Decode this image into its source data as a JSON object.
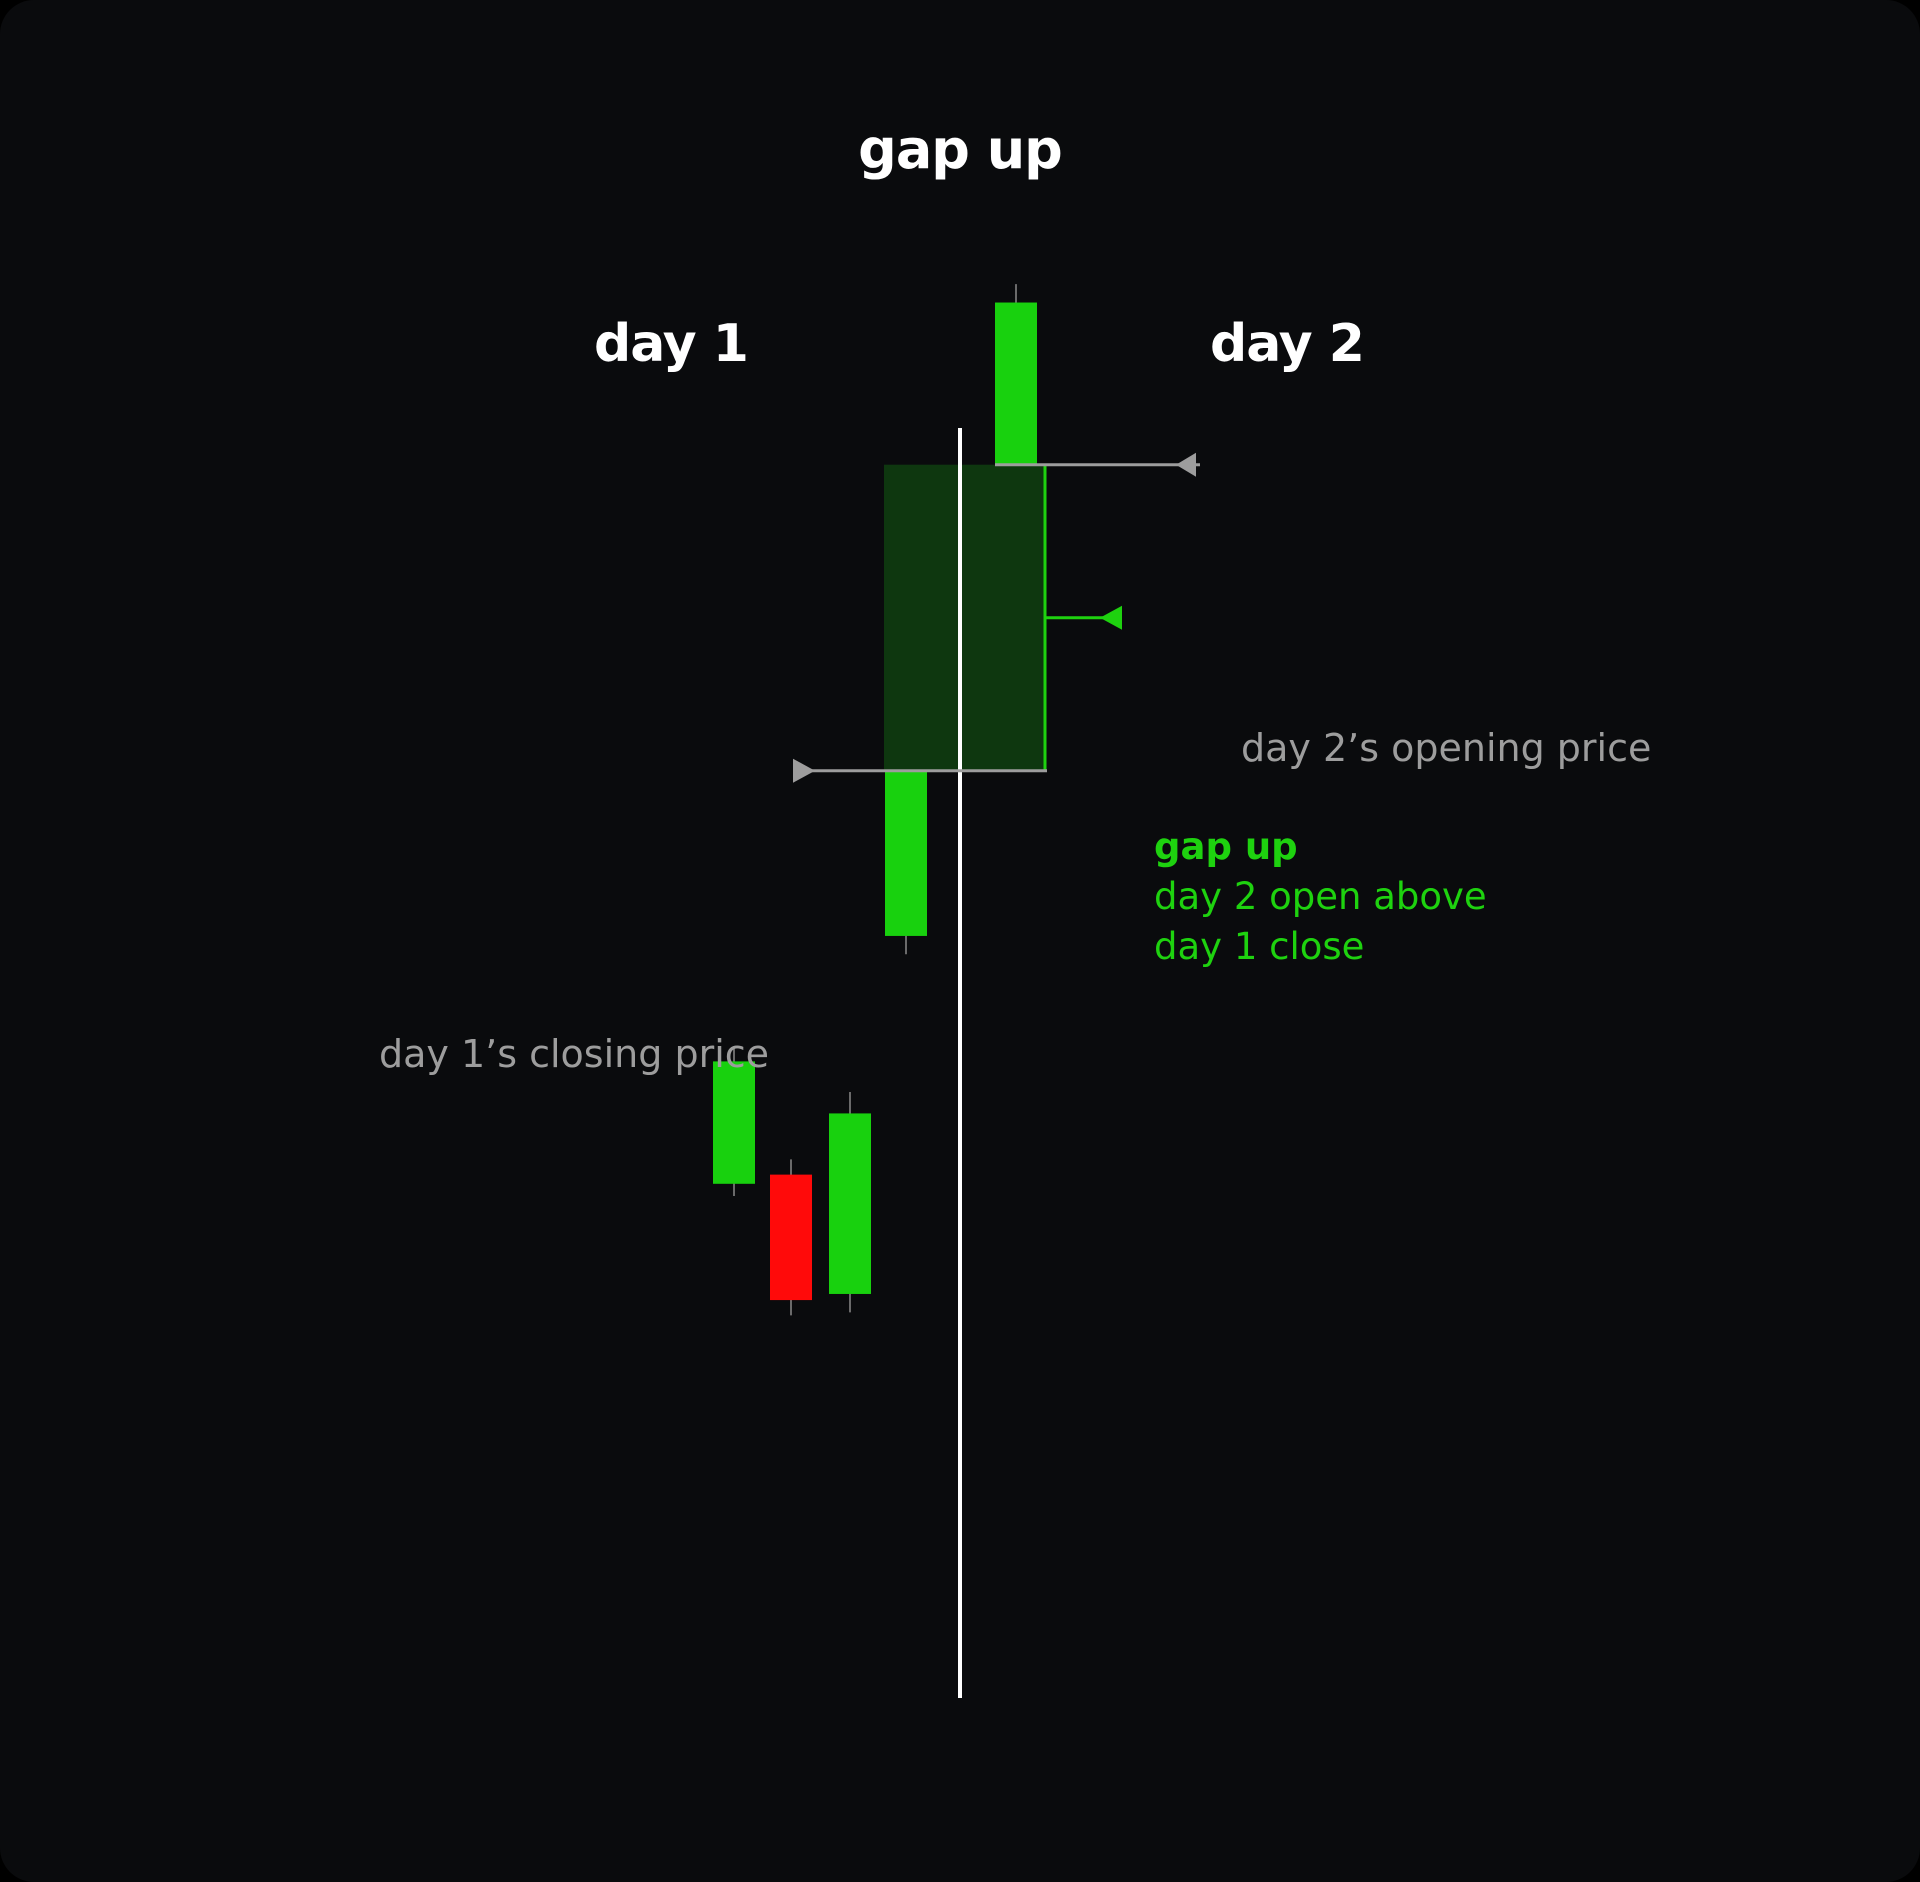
{
  "title": "gap up",
  "sections": {
    "left": "day 1",
    "right": "day 2"
  },
  "annotations": {
    "open": "day 2’s opening price",
    "close": "day 1’s closing price",
    "gap_title": "gap up",
    "gap_line1": "day 2 open above",
    "gap_line2": "day 1 close"
  },
  "colors": {
    "background": "#0a0b0d",
    "bullish": "#18d10e",
    "bearish": "#ff0a0a",
    "gap_fill": "#0f3a10",
    "gap_border": "#1ed20f",
    "divider": "#ffffff",
    "guide": "#9d9d9d",
    "text": "#ffffff"
  },
  "chart_data": {
    "type": "candlestick",
    "day1_candles": [
      {
        "open": 2,
        "close": 6,
        "high": 6.5,
        "low": 1.6,
        "direction": "up"
      },
      {
        "open": 2.3,
        "close": -1.8,
        "high": 2.8,
        "low": -2.3,
        "direction": "down"
      },
      {
        "open": -1.6,
        "close": 4.3,
        "high": 5,
        "low": -2.2,
        "direction": "up"
      },
      {
        "open": 10.1,
        "close": 15.5,
        "high": 15.5,
        "low": 9.5,
        "direction": "up"
      }
    ],
    "day2_candles": [
      {
        "open": 25.5,
        "close": 30.8,
        "high": 31.4,
        "low": 25.5,
        "direction": "up"
      }
    ],
    "gap": {
      "from": 15.5,
      "to": 25.5,
      "type": "gap up"
    }
  }
}
